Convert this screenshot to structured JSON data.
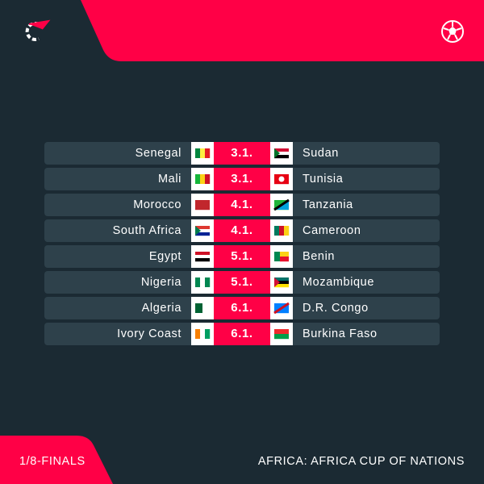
{
  "matches": [
    {
      "home": "Senegal",
      "date": "3.1.",
      "away": "Sudan"
    },
    {
      "home": "Mali",
      "date": "3.1.",
      "away": "Tunisia"
    },
    {
      "home": "Morocco",
      "date": "4.1.",
      "away": "Tanzania"
    },
    {
      "home": "South Africa",
      "date": "4.1.",
      "away": "Cameroon"
    },
    {
      "home": "Egypt",
      "date": "5.1.",
      "away": "Benin"
    },
    {
      "home": "Nigeria",
      "date": "5.1.",
      "away": "Mozambique"
    },
    {
      "home": "Algeria",
      "date": "6.1.",
      "away": "D.R. Congo"
    },
    {
      "home": "Ivory Coast",
      "date": "6.1.",
      "away": "Burkina Faso"
    }
  ],
  "footer": {
    "round": "1/8-FINALS",
    "competition": "AFRICA: AFRICA CUP OF NATIONS"
  }
}
